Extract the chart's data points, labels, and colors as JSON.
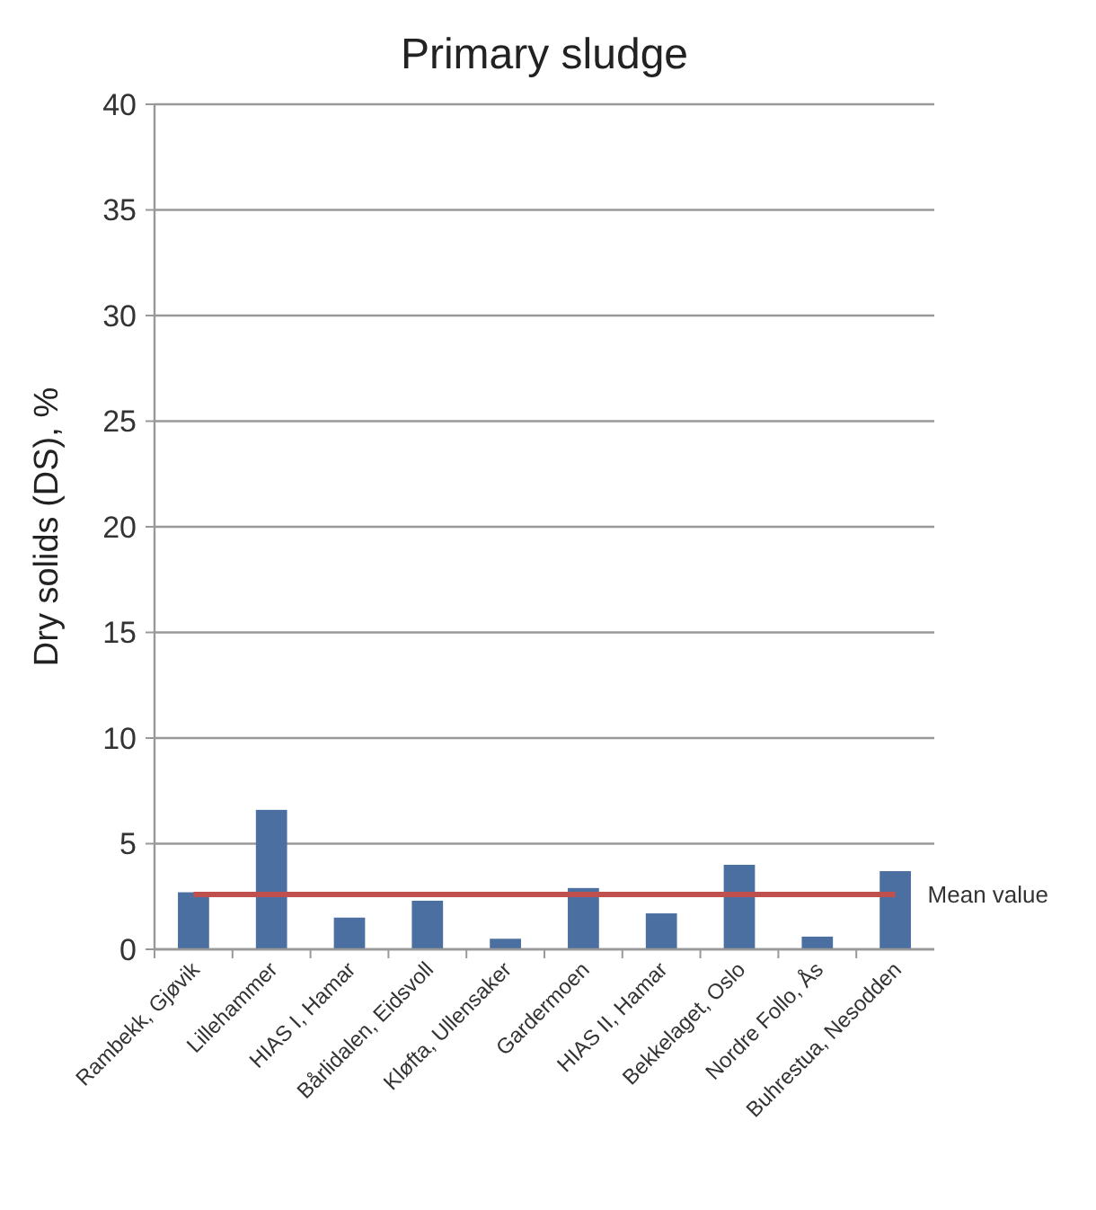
{
  "chart_data": {
    "type": "bar",
    "title": "Primary sludge",
    "ylabel": "Dry solids (DS), %",
    "categories": [
      "Rambekk, Gjøvik",
      "Lillehammer",
      "HIAS I, Hamar",
      "Bårlidalen, Eidsvoll",
      "Kløfta, Ullensaker",
      "Gardermoen",
      "HIAS II, Hamar",
      "Bekkelaget, Oslo",
      "Nordre Follo, Ås",
      "Buhrestua, Nesodden"
    ],
    "values": [
      2.7,
      6.6,
      1.5,
      2.3,
      0.5,
      2.9,
      1.7,
      4.0,
      0.6,
      3.7
    ],
    "color": "#4a6fa0",
    "ylim": [
      0,
      40
    ],
    "yticks": [
      0,
      5,
      10,
      15,
      20,
      25,
      30,
      35,
      40
    ],
    "grid": "y",
    "ref_lines": [
      {
        "axis": "y",
        "value": 2.6,
        "label": "Mean value",
        "color": "#c0504d"
      }
    ]
  }
}
